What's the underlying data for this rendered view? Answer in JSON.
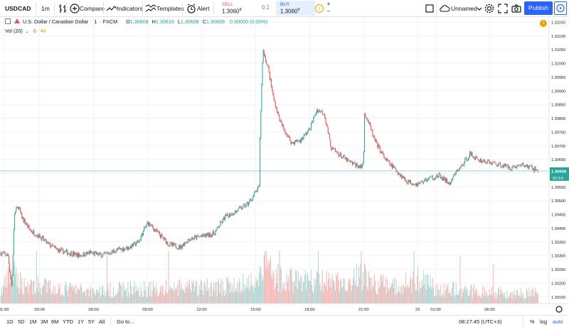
{
  "toolbar": {
    "symbol": "USDCAD",
    "interval": "1m",
    "compare_label": "Compare",
    "indicators_label": "Indicators",
    "templates_label": "Templates",
    "alert_label": "Alert",
    "sell_label": "SELL",
    "sell_price": "1.3060",
    "sell_sup": "8",
    "spread": "0.1",
    "buy_label": "BUY",
    "buy_price": "1.3060",
    "buy_sup": "9",
    "layout_name": "Unnamed",
    "publish_label": "Publish"
  },
  "legend": {
    "title": "U.S. Dollar / Canadian Dollar",
    "interval": "1",
    "exchange": "FXCM",
    "o_label": "O",
    "o_value": "1.30608",
    "h_label": "H",
    "h_value": "1.30610",
    "l_label": "L",
    "l_value": "1.30608",
    "c_label": "C",
    "c_value": "1.30608",
    "change": "0.00000 (0.00%)",
    "vol_label": "Vol (20)",
    "vol_value1": "6",
    "vol_value2": "44",
    "alert_count": "1"
  },
  "bottombar": {
    "ranges": [
      "1D",
      "5D",
      "1M",
      "3M",
      "6M",
      "YTD",
      "1Y",
      "5Y",
      "All"
    ],
    "goto_label": "Go to...",
    "clock": "08:27:45 (UTC+3)",
    "percent_label": "%",
    "log_label": "log",
    "auto_label": "auto"
  },
  "colors": {
    "up": "#26a69a",
    "down": "#ef5350",
    "up_volume": "#a8d9d4",
    "down_volume": "#f7b5b3",
    "accent": "#2962ff",
    "grid": "#f0f3fa"
  },
  "chart_data": {
    "type": "candlestick",
    "symbol": "USDCAD",
    "title": "U.S. Dollar / Canadian Dollar",
    "interval": "1",
    "y_ticks": [
      1.3115,
      1.311,
      1.3105,
      1.31,
      1.3095,
      1.309,
      1.3085,
      1.308,
      1.3075,
      1.307,
      1.3065,
      1.306,
      1.3055,
      1.305,
      1.3045,
      1.304,
      1.3035,
      1.303,
      1.3025,
      1.302,
      1.3015
    ],
    "y_tick_labels": [
      "1.31150",
      "1.31100",
      "1.31050",
      "1.31000",
      "1.30950",
      "1.30900",
      "1.30850",
      "1.30800",
      "1.30750",
      "1.30700",
      "1.30650",
      "1.30600",
      "1.30550",
      "1.30500",
      "1.30450",
      "1.30400",
      "1.30350",
      "1.30300",
      "1.30250",
      "1.30200",
      "1.30150"
    ],
    "ylim": [
      1.30125,
      1.31168
    ],
    "x_ticks": [
      1,
      3,
      6,
      9,
      12,
      15,
      18,
      21,
      24,
      25,
      28
    ],
    "x_tick_labels": [
      "01:00",
      "03:00",
      "06:00",
      "09:00",
      "12:00",
      "15:00",
      "18:00",
      "21:00",
      "22",
      "01:00",
      "06:00"
    ],
    "xlim": [
      0.8,
      31.3
    ],
    "last_price": "1.30608",
    "last_price_value": 1.30608,
    "countdown": "00:14",
    "close_path": [
      [
        0.8,
        1.3031
      ],
      [
        1.25,
        1.303
      ],
      [
        1.45,
        1.3018
      ],
      [
        1.6,
        1.3045
      ],
      [
        1.8,
        1.3048
      ],
      [
        2.0,
        1.3044
      ],
      [
        2.5,
        1.3039
      ],
      [
        3.0,
        1.3037
      ],
      [
        3.5,
        1.3034
      ],
      [
        4.0,
        1.3032
      ],
      [
        4.6,
        1.3031
      ],
      [
        5.2,
        1.303
      ],
      [
        5.8,
        1.3031
      ],
      [
        6.5,
        1.303
      ],
      [
        7.3,
        1.3032
      ],
      [
        8.0,
        1.3033
      ],
      [
        8.5,
        1.3035
      ],
      [
        9.0,
        1.3042
      ],
      [
        9.6,
        1.3038
      ],
      [
        10.2,
        1.3034
      ],
      [
        10.8,
        1.3033
      ],
      [
        11.3,
        1.3036
      ],
      [
        12.0,
        1.3037
      ],
      [
        12.7,
        1.3038
      ],
      [
        13.3,
        1.3044
      ],
      [
        13.9,
        1.3046
      ],
      [
        14.6,
        1.3049
      ],
      [
        15.2,
        1.3055
      ],
      [
        15.25,
        1.3075
      ],
      [
        15.4,
        1.3105
      ],
      [
        15.7,
        1.3098
      ],
      [
        16.0,
        1.3087
      ],
      [
        16.4,
        1.3078
      ],
      [
        17.0,
        1.3071
      ],
      [
        17.5,
        1.3072
      ],
      [
        18.0,
        1.3076
      ],
      [
        18.4,
        1.3083
      ],
      [
        18.8,
        1.3082
      ],
      [
        19.2,
        1.3069
      ],
      [
        19.6,
        1.3067
      ],
      [
        20.2,
        1.3064
      ],
      [
        20.9,
        1.3062
      ],
      [
        21.0,
        1.3066
      ],
      [
        21.05,
        1.3082
      ],
      [
        21.3,
        1.3078
      ],
      [
        21.6,
        1.3072
      ],
      [
        22.2,
        1.3065
      ],
      [
        22.8,
        1.3061
      ],
      [
        23.4,
        1.3057
      ],
      [
        24.0,
        1.3056
      ],
      [
        24.6,
        1.3058
      ],
      [
        25.2,
        1.3059
      ],
      [
        25.8,
        1.3056
      ],
      [
        26.1,
        1.306
      ],
      [
        26.5,
        1.3063
      ],
      [
        26.9,
        1.3067
      ],
      [
        27.3,
        1.3065
      ],
      [
        27.9,
        1.3064
      ],
      [
        28.6,
        1.3063
      ],
      [
        29.2,
        1.3062
      ],
      [
        29.8,
        1.3063
      ],
      [
        30.3,
        1.3062
      ],
      [
        30.7,
        1.30608
      ]
    ],
    "volume_max": 10,
    "volume_profile": [
      [
        0.8,
        2
      ],
      [
        1.45,
        6
      ],
      [
        2.0,
        4
      ],
      [
        4.0,
        3
      ],
      [
        6.0,
        2.5
      ],
      [
        8.0,
        3
      ],
      [
        10.0,
        3
      ],
      [
        12.0,
        3.2
      ],
      [
        14.0,
        3.5
      ],
      [
        15.2,
        5
      ],
      [
        15.4,
        8
      ],
      [
        16.5,
        5
      ],
      [
        18.0,
        4.5
      ],
      [
        20.0,
        4
      ],
      [
        21.0,
        6
      ],
      [
        21.5,
        4
      ],
      [
        23.0,
        3.5
      ],
      [
        24.1,
        5
      ],
      [
        25.0,
        3
      ],
      [
        27.0,
        2.5
      ],
      [
        29.0,
        2.2
      ],
      [
        30.7,
        2
      ]
    ]
  }
}
